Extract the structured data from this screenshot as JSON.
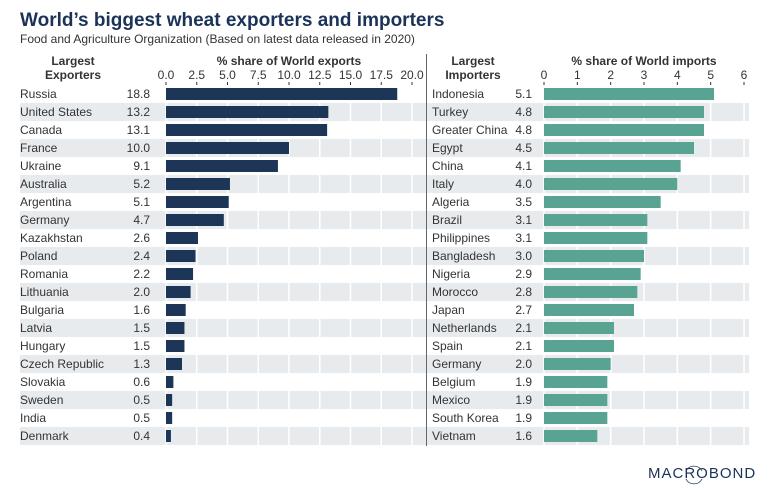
{
  "title": "World’s biggest wheat exporters and importers",
  "subtitle": "Food and Agriculture Organization (Based on latest data released in 2020)",
  "logo": "MACROBOND",
  "colors": {
    "exports": "#1d3557",
    "imports": "#58a391",
    "band": "#e8ebee",
    "title": "#1b3358"
  },
  "chart_data": [
    {
      "type": "bar",
      "orientation": "horizontal",
      "category_header": "Largest Exporters",
      "xlabel": "% share of World exports",
      "xlim": [
        0,
        20
      ],
      "ticks": [
        "0.0",
        "2.5",
        "5.0",
        "7.5",
        "10.0",
        "12.5",
        "15.0",
        "17.5",
        "20.0"
      ],
      "categories": [
        "Russia",
        "United States",
        "Canada",
        "France",
        "Ukraine",
        "Australia",
        "Argentina",
        "Germany",
        "Kazakhstan",
        "Poland",
        "Romania",
        "Lithuania",
        "Bulgaria",
        "Latvia",
        "Hungary",
        "Czech Republic",
        "Slovakia",
        "Sweden",
        "India",
        "Denmark"
      ],
      "values": [
        18.8,
        13.2,
        13.1,
        10.0,
        9.1,
        5.2,
        5.1,
        4.7,
        2.6,
        2.4,
        2.2,
        2.0,
        1.6,
        1.5,
        1.5,
        1.3,
        0.6,
        0.5,
        0.5,
        0.4
      ],
      "value_labels": [
        "18.8",
        "13.2",
        "13.1",
        "10.0",
        "9.1",
        "5.2",
        "5.1",
        "4.7",
        "2.6",
        "2.4",
        "2.2",
        "2.0",
        "1.6",
        "1.5",
        "1.5",
        "1.3",
        "0.6",
        "0.5",
        "0.5",
        "0.4"
      ],
      "color": "#1d3557"
    },
    {
      "type": "bar",
      "orientation": "horizontal",
      "category_header": "Largest Importers",
      "xlabel": "% share of World imports",
      "xlim": [
        0,
        6
      ],
      "ticks": [
        "0",
        "1",
        "2",
        "3",
        "4",
        "5",
        "6"
      ],
      "categories": [
        "Indonesia",
        "Turkey",
        "Greater China",
        "Egypt",
        "China",
        "Italy",
        "Algeria",
        "Brazil",
        "Philippines",
        "Bangladesh",
        "Nigeria",
        "Morocco",
        "Japan",
        "Netherlands",
        "Spain",
        "Germany",
        "Belgium",
        "Mexico",
        "South Korea",
        "Vietnam"
      ],
      "values": [
        5.1,
        4.8,
        4.8,
        4.5,
        4.1,
        4.0,
        3.5,
        3.1,
        3.1,
        3.0,
        2.9,
        2.8,
        2.7,
        2.1,
        2.1,
        2.0,
        1.9,
        1.9,
        1.9,
        1.6
      ],
      "value_labels": [
        "5.1",
        "4.8",
        "4.8",
        "4.5",
        "4.1",
        "4.0",
        "3.5",
        "3.1",
        "3.1",
        "3.0",
        "2.9",
        "2.8",
        "2.7",
        "2.1",
        "2.1",
        "2.0",
        "1.9",
        "1.9",
        "1.9",
        "1.6"
      ],
      "color": "#58a391"
    }
  ]
}
